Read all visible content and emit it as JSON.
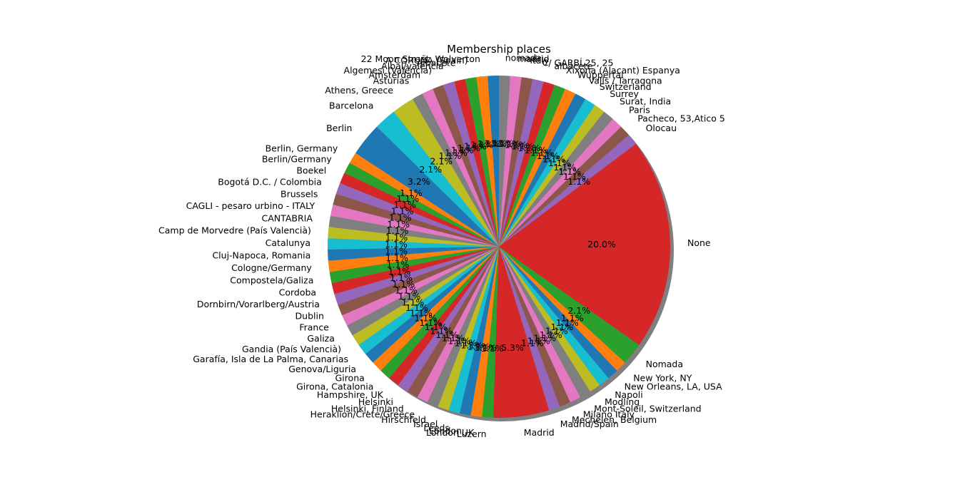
{
  "chart_data": {
    "type": "pie",
    "title": "Membership places",
    "shadow": true,
    "start_angle_deg": 90,
    "direction": "counterclockwise",
    "colors": [
      "#1f77b4",
      "#ff7f0e",
      "#2ca02c",
      "#d62728",
      "#9467bd",
      "#8c564b",
      "#e377c2",
      "#7f7f7f",
      "#bcbd22",
      "#17becf"
    ],
    "slices": [
      {
        "label": "",
        "value": 1
      },
      {
        "label": "22 Moon Street, Wolverton",
        "value": 1
      },
      {
        "label": "A CORUÑA (Spain)",
        "value": 1
      },
      {
        "label": "Albacete",
        "value": 1
      },
      {
        "label": "Albal/valència",
        "value": 1
      },
      {
        "label": "Algemesí (València)",
        "value": 1
      },
      {
        "label": "Amsterdam",
        "value": 1
      },
      {
        "label": "Asturias",
        "value": 1
      },
      {
        "label": "Athens, Greece",
        "value": 2
      },
      {
        "label": "Barcelona",
        "value": 2
      },
      {
        "label": "Berlin",
        "value": 3
      },
      {
        "label": "Berlin, Germany",
        "value": 1
      },
      {
        "label": "Berlin/Germany",
        "value": 1
      },
      {
        "label": "Boekel",
        "value": 1
      },
      {
        "label": "Bogotá D.C. / Colombia",
        "value": 1
      },
      {
        "label": "Brussels",
        "value": 1
      },
      {
        "label": "CAGLI - pesaro urbino - ITALY",
        "value": 1
      },
      {
        "label": "CANTABRIA",
        "value": 1
      },
      {
        "label": "Camp de Morvedre (País Valencià)",
        "value": 1
      },
      {
        "label": "Catalunya",
        "value": 1
      },
      {
        "label": "Cluj-Napoca, Romania",
        "value": 1
      },
      {
        "label": "Cologne/Germany",
        "value": 1
      },
      {
        "label": "Compostela/Galiza",
        "value": 1
      },
      {
        "label": "Cordoba",
        "value": 1
      },
      {
        "label": "Dornbirn/Vorarlberg/Austria",
        "value": 1
      },
      {
        "label": "Dublin",
        "value": 1
      },
      {
        "label": "France",
        "value": 1
      },
      {
        "label": "Galiza",
        "value": 1
      },
      {
        "label": "Gandia (País Valencià)",
        "value": 1
      },
      {
        "label": "Garafía, Isla de La Palma, Canarias",
        "value": 1
      },
      {
        "label": "Genova/Liguria",
        "value": 1
      },
      {
        "label": "Girona",
        "value": 1
      },
      {
        "label": "Girona, Catalonia",
        "value": 1
      },
      {
        "label": "Hampshire, UK",
        "value": 1
      },
      {
        "label": "Helsinki",
        "value": 1
      },
      {
        "label": "Helsinki, Finland",
        "value": 1
      },
      {
        "label": "Heraklion/Crete/Greece",
        "value": 1
      },
      {
        "label": "Hirschfeld",
        "value": 1
      },
      {
        "label": "Israel",
        "value": 1
      },
      {
        "label": "Leeds",
        "value": 1
      },
      {
        "label": "London",
        "value": 1
      },
      {
        "label": "London UK",
        "value": 1
      },
      {
        "label": "Luzern",
        "value": 1
      },
      {
        "label": "Madrid",
        "value": 5
      },
      {
        "label": "Madrid/Spain",
        "value": 1
      },
      {
        "label": "Mechelen, Belgium",
        "value": 1
      },
      {
        "label": "Milano Italy",
        "value": 1
      },
      {
        "label": "Mont-Soleil, Switzerland",
        "value": 1
      },
      {
        "label": "Modling",
        "value": 1
      },
      {
        "label": "Napoli",
        "value": 1
      },
      {
        "label": "New Orleans, LA, USA",
        "value": 1
      },
      {
        "label": "New York, NY",
        "value": 1
      },
      {
        "label": "Nomada",
        "value": 2
      },
      {
        "label": "None",
        "value": 19
      },
      {
        "label": "Olocau",
        "value": 1
      },
      {
        "label": "Pacheco, 53,Atico 5",
        "value": 1
      },
      {
        "label": "Paris",
        "value": 1
      },
      {
        "label": "Surat, India",
        "value": 1
      },
      {
        "label": "Surrey",
        "value": 1
      },
      {
        "label": "Switzerland",
        "value": 1
      },
      {
        "label": "Valls / Tarragona",
        "value": 1
      },
      {
        "label": "Wuppertal",
        "value": 1
      },
      {
        "label": "Xixona (Alacant) Espanya",
        "value": 1
      },
      {
        "label": "albacete",
        "value": 1
      },
      {
        "label": "C/ GARBÍ,25, 25",
        "value": 1
      },
      {
        "label": "italy",
        "value": 1
      },
      {
        "label": "madrid",
        "value": 1
      },
      {
        "label": "nomada",
        "value": 1
      }
    ]
  }
}
